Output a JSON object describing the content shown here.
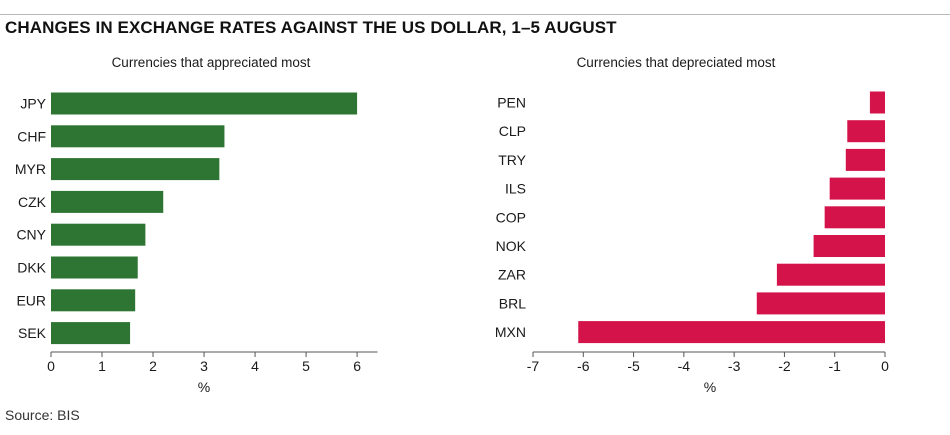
{
  "title": "CHANGES IN EXCHANGE RATES AGAINST THE US DOLLAR, 1–5 AUGUST",
  "source": "Source: BIS",
  "colors": {
    "appreciated": "#2e7432",
    "depreciated": "#d4134a",
    "axis": "#555555"
  },
  "chart_data": [
    {
      "type": "bar",
      "orientation": "horizontal",
      "title": "Currencies that appreciated most",
      "categories": [
        "JPY",
        "CHF",
        "MYR",
        "CZK",
        "CNY",
        "DKK",
        "EUR",
        "SEK"
      ],
      "values": [
        6.0,
        3.4,
        3.3,
        2.2,
        1.85,
        1.7,
        1.65,
        1.55
      ],
      "xlabel": "%",
      "xlim": [
        0,
        6.4
      ],
      "ticks": [
        0,
        1,
        2,
        3,
        4,
        5,
        6
      ],
      "tick_labels": [
        "0",
        "1",
        "2",
        "3",
        "4",
        "5",
        "6"
      ],
      "grid": false
    },
    {
      "type": "bar",
      "orientation": "horizontal",
      "title": "Currencies that depreciated most",
      "categories": [
        "PEN",
        "CLP",
        "TRY",
        "ILS",
        "COP",
        "NOK",
        "ZAR",
        "BRL",
        "MXN"
      ],
      "values": [
        -0.3,
        -0.75,
        -0.78,
        -1.1,
        -1.2,
        -1.42,
        -2.15,
        -2.55,
        -6.1
      ],
      "xlabel": "%",
      "xlim": [
        -7,
        0
      ],
      "ticks": [
        -7,
        -6,
        -5,
        -4,
        -3,
        -2,
        -1,
        0
      ],
      "tick_labels": [
        "-7",
        "-6",
        "-5",
        "-4",
        "-3",
        "-2",
        "-1",
        "0"
      ],
      "grid": false
    }
  ]
}
